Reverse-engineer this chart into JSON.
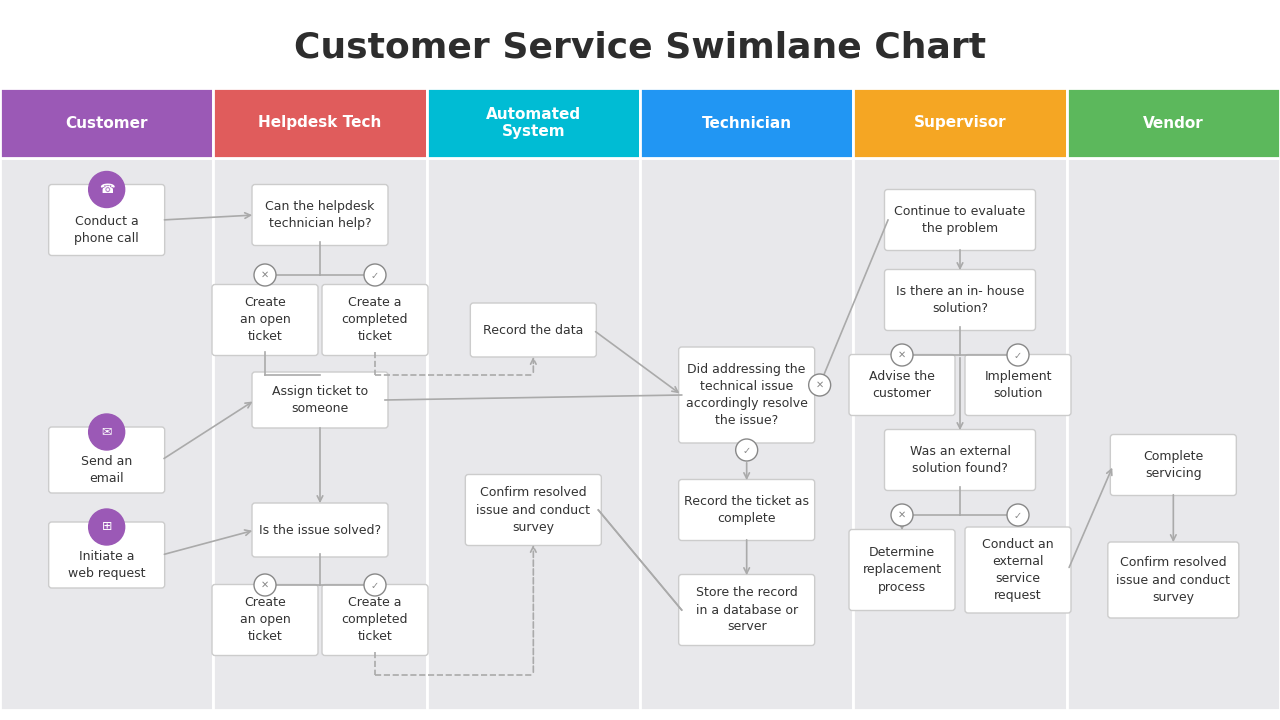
{
  "title": "Customer Service Swimlane Chart",
  "title_fontsize": 26,
  "title_color": "#2d2d2d",
  "box_color": "#ffffff",
  "box_border_color": "#cccccc",
  "box_text_color": "#333333",
  "arrow_color": "#aaaaaa",
  "lanes": [
    {
      "name": "Customer",
      "color": "#9b59b6"
    },
    {
      "name": "Helpdesk Tech",
      "color": "#e05c5c"
    },
    {
      "name": "Automated\nSystem",
      "color": "#00bcd4"
    },
    {
      "name": "Technician",
      "color": "#2196f3"
    },
    {
      "name": "Supervisor",
      "color": "#f5a623"
    },
    {
      "name": "Vendor",
      "color": "#5cb85c"
    }
  ],
  "lane_bg_color": "#e8e8eb",
  "icon_color": "#9b59b6"
}
